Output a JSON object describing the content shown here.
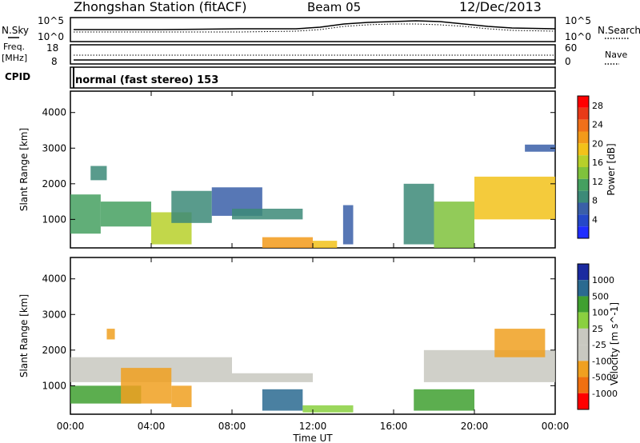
{
  "header": {
    "station": "Zhongshan Station (fitACF)",
    "beam": "Beam 05",
    "date": "12/Dec/2013"
  },
  "noise_panel": {
    "left_label": "N.Sky",
    "left_top_tick": "10^5",
    "left_bottom_tick": "10^0",
    "right_top_tick": "10^5",
    "right_bottom_tick": "10^0",
    "right_label": "N.Search"
  },
  "freq_panel": {
    "left_label_1": "Freq.",
    "left_label_2": "[MHz]",
    "left_top_tick": "18",
    "left_bottom_tick": "8",
    "right_top_tick": "60",
    "right_bottom_tick": "0",
    "right_label": "Nave"
  },
  "cpid_panel": {
    "label": "CPID",
    "mode_text": "normal (fast stereo) 153"
  },
  "colors": {
    "power": [
      "#1f2dff",
      "#2548c8",
      "#3a5fa8",
      "#3c8a78",
      "#45a060",
      "#7fc23c",
      "#b7d02a",
      "#f2c21a",
      "#f29a1a",
      "#f0701a",
      "#e83a18",
      "#ff0000"
    ],
    "velocity": [
      "#ff0000",
      "#f07010",
      "#f0a020",
      "#c8c8c0",
      "#c8c8c0",
      "#8ad040",
      "#40a030",
      "#2a6a90",
      "#1a2aa0"
    ]
  },
  "chart_data": [
    {
      "type": "heatmap",
      "name": "power",
      "xlabel": "",
      "ylabel": "Slant Range [km]",
      "xlim": [
        "00:00",
        "24:00"
      ],
      "ylim": [
        200,
        4600
      ],
      "x_ticks": [
        "00:00",
        "04:00",
        "08:00",
        "12:00",
        "16:00",
        "20:00",
        "00:00"
      ],
      "y_ticks": [
        1000,
        2000,
        3000,
        4000
      ],
      "colorbar_label": "Power [dB]",
      "colorbar_ticks": [
        "4",
        "8",
        "12",
        "16",
        "20",
        "24",
        "28"
      ],
      "regions": [
        {
          "t0": 0.0,
          "t1": 1.5,
          "r0": 600,
          "r1": 1700,
          "value": 10
        },
        {
          "t0": 1.0,
          "t1": 1.8,
          "r0": 2100,
          "r1": 2500,
          "value": 8
        },
        {
          "t0": 1.5,
          "t1": 4.0,
          "r0": 800,
          "r1": 1500,
          "value": 12
        },
        {
          "t0": 4.0,
          "t1": 6.0,
          "r0": 300,
          "r1": 1200,
          "value": 16
        },
        {
          "t0": 5.0,
          "t1": 7.0,
          "r0": 900,
          "r1": 1800,
          "value": 8
        },
        {
          "t0": 7.0,
          "t1": 9.5,
          "r0": 1100,
          "r1": 1900,
          "value": 6
        },
        {
          "t0": 8.0,
          "t1": 11.5,
          "r0": 1000,
          "r1": 1300,
          "value": 8
        },
        {
          "t0": 9.5,
          "t1": 12.0,
          "r0": 200,
          "r1": 500,
          "value": 22
        },
        {
          "t0": 12.0,
          "t1": 13.2,
          "r0": 200,
          "r1": 400,
          "value": 18
        },
        {
          "t0": 13.5,
          "t1": 14.0,
          "r0": 300,
          "r1": 1400,
          "value": 6
        },
        {
          "t0": 16.5,
          "t1": 18.0,
          "r0": 300,
          "r1": 2000,
          "value": 8
        },
        {
          "t0": 18.0,
          "t1": 20.0,
          "r0": 200,
          "r1": 1500,
          "value": 14
        },
        {
          "t0": 20.0,
          "t1": 24.0,
          "r0": 1000,
          "r1": 2200,
          "value": 18
        },
        {
          "t0": 22.5,
          "t1": 24.0,
          "r0": 2900,
          "r1": 3100,
          "value": 6
        }
      ]
    },
    {
      "type": "heatmap",
      "name": "velocity",
      "xlabel": "Time UT",
      "ylabel": "Slant Range [km]",
      "xlim": [
        "00:00",
        "24:00"
      ],
      "ylim": [
        200,
        4600
      ],
      "x_ticks": [
        "00:00",
        "04:00",
        "08:00",
        "12:00",
        "16:00",
        "20:00",
        "00:00"
      ],
      "y_ticks": [
        1000,
        2000,
        3000,
        4000
      ],
      "colorbar_label": "Velocity [m s^-1]",
      "colorbar_ticks": [
        "1000",
        "500",
        "100",
        "25",
        "-25",
        "-100",
        "-500",
        "-1000"
      ],
      "regions": [
        {
          "t0": 0.0,
          "t1": 8.0,
          "r0": 1100,
          "r1": 1800,
          "value": 0
        },
        {
          "t0": 0.0,
          "t1": 3.5,
          "r0": 500,
          "r1": 1000,
          "value": 150
        },
        {
          "t0": 2.5,
          "t1": 5.0,
          "r0": 500,
          "r1": 1500,
          "value": -150
        },
        {
          "t0": 5.0,
          "t1": 6.0,
          "r0": 400,
          "r1": 1000,
          "value": -200
        },
        {
          "t0": 8.0,
          "t1": 12.0,
          "r0": 1100,
          "r1": 1350,
          "value": 0
        },
        {
          "t0": 9.5,
          "t1": 11.5,
          "r0": 300,
          "r1": 900,
          "value": 600
        },
        {
          "t0": 11.5,
          "t1": 14.0,
          "r0": 250,
          "r1": 450,
          "value": 50
        },
        {
          "t0": 17.0,
          "t1": 20.0,
          "r0": 300,
          "r1": 900,
          "value": 150
        },
        {
          "t0": 17.5,
          "t1": 24.0,
          "r0": 1100,
          "r1": 2000,
          "value": 0
        },
        {
          "t0": 21.0,
          "t1": 23.5,
          "r0": 1800,
          "r1": 2600,
          "value": -150
        },
        {
          "t0": 1.8,
          "t1": 2.2,
          "r0": 2300,
          "r1": 2600,
          "value": -200
        }
      ]
    }
  ]
}
